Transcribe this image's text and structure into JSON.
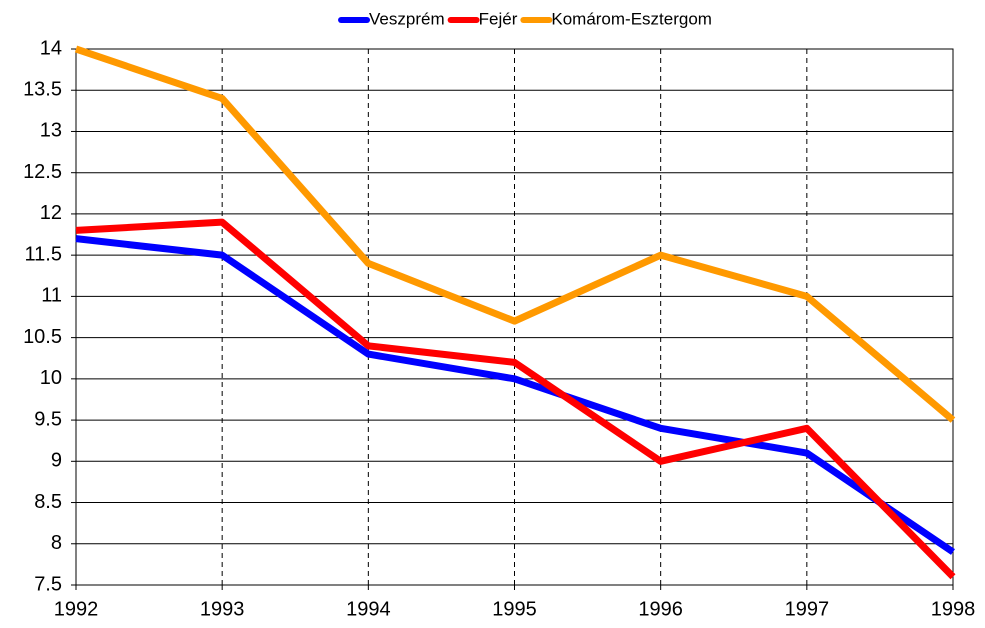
{
  "chart_data": {
    "type": "line",
    "x": [
      1992,
      1993,
      1994,
      1995,
      1996,
      1997,
      1998
    ],
    "series": [
      {
        "name": "Veszprém",
        "color": "#0000ff",
        "values": [
          11.7,
          11.5,
          10.3,
          10.0,
          9.4,
          9.1,
          7.9
        ]
      },
      {
        "name": "Fejér",
        "color": "#ff0000",
        "values": [
          11.8,
          11.9,
          10.4,
          10.2,
          9.0,
          9.4,
          7.6
        ]
      },
      {
        "name": "Komárom-Esztergom",
        "color": "#ff9900",
        "values": [
          14.0,
          13.4,
          11.4,
          10.7,
          11.5,
          11.0,
          9.5
        ]
      }
    ],
    "xlim": [
      1992,
      1998
    ],
    "xticks": [
      1992,
      1993,
      1994,
      1995,
      1996,
      1997,
      1998
    ],
    "ylim": [
      7.5,
      14
    ],
    "yticks": [
      7.5,
      8,
      8.5,
      9,
      9.5,
      10,
      10.5,
      11,
      11.5,
      12,
      12.5,
      13,
      13.5,
      14
    ],
    "grid": true,
    "legend": "top"
  }
}
